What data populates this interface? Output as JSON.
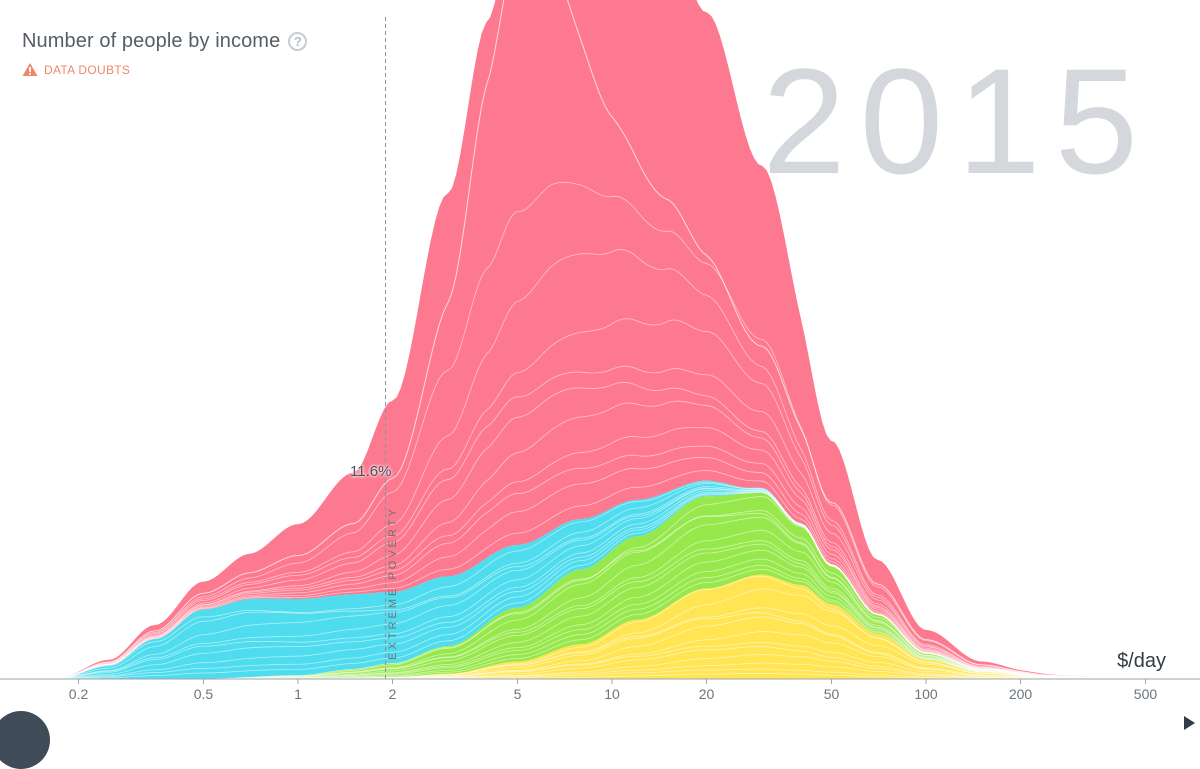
{
  "header": {
    "title": "Number of people by income",
    "help_symbol": "?",
    "data_doubts_label": "DATA DOUBTS"
  },
  "year": "2015",
  "poverty_line": {
    "label": "EXTREME POVERTY",
    "value": 1.9,
    "percent_label": "11.6%"
  },
  "colors": {
    "red": "#fd798f",
    "cyan": "#4fdcee",
    "green": "#97e84c",
    "yellow": "#ffe553",
    "axis": "#9aa3ab",
    "year": "#d4d8dc",
    "warning": "#f0876a"
  },
  "chart_data": {
    "type": "area",
    "x_scale": "log",
    "xlim": [
      0.1,
      500
    ],
    "xlabel": "$/day",
    "x_ticks": [
      0.2,
      0.5,
      1,
      2,
      5,
      10,
      20,
      50,
      100,
      200,
      500
    ],
    "x_tick_labels": [
      "0.2",
      "0.5",
      "1",
      "2",
      "5",
      "10",
      "20",
      "50",
      "100",
      "200",
      "500"
    ],
    "stacking": "stacked",
    "stack_order": [
      "yellow",
      "green",
      "cyan",
      "red"
    ],
    "series": [
      {
        "color": "yellow",
        "x": [
          0.3,
          1,
          2,
          3,
          5,
          8,
          12,
          20,
          30,
          40,
          50,
          70,
          100,
          150,
          250,
          500
        ],
        "values": [
          0,
          0,
          0.1,
          0.3,
          1.0,
          2.0,
          3.4,
          5.2,
          6.0,
          5.4,
          4.3,
          2.6,
          1.1,
          0.4,
          0.1,
          0
        ]
      },
      {
        "color": "green",
        "x": [
          0.3,
          0.5,
          1,
          1.5,
          2,
          3,
          5,
          8,
          12,
          20,
          30,
          40,
          50,
          70,
          100,
          150,
          250,
          500
        ],
        "values": [
          0,
          0,
          0.2,
          0.5,
          0.8,
          1.6,
          3.1,
          4.3,
          4.8,
          5.3,
          4.7,
          3.4,
          2.2,
          1.1,
          0.4,
          0.15,
          0.05,
          0
        ]
      },
      {
        "color": "cyan",
        "x": [
          0.17,
          0.25,
          0.35,
          0.5,
          0.7,
          1,
          1.5,
          2,
          3,
          5,
          8,
          12,
          20,
          28,
          40,
          50,
          70,
          100,
          200,
          500
        ],
        "values": [
          0,
          0.8,
          2.3,
          4.0,
          4.5,
          4.4,
          4.3,
          4.1,
          4.0,
          3.6,
          2.9,
          2.1,
          0.9,
          0.3,
          0.15,
          0.1,
          0.05,
          0.02,
          0,
          0
        ]
      },
      {
        "color": "red",
        "x": [
          0.17,
          0.25,
          0.35,
          0.5,
          0.7,
          1,
          1.5,
          2,
          3,
          4,
          5,
          6.5,
          8,
          10,
          15,
          20,
          30,
          50,
          70,
          100,
          150,
          200,
          300,
          500
        ],
        "values": [
          0,
          0.3,
          0.8,
          1.6,
          2.6,
          4.3,
          7.0,
          11.0,
          22.0,
          30.8,
          35.8,
          37.9,
          37.4,
          35.9,
          31.6,
          26.9,
          18.5,
          7.1,
          3.1,
          1.3,
          0.45,
          0.2,
          0.05,
          0
        ]
      }
    ]
  }
}
